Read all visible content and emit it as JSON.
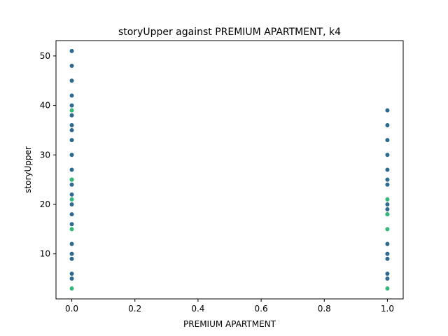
{
  "chart_data": {
    "type": "scatter",
    "title": "storyUpper against PREMIUM APARTMENT, k4",
    "xlabel": "PREMIUM APARTMENT",
    "ylabel": "storyUpper",
    "xlim": [
      -0.05,
      1.05
    ],
    "ylim": [
      0.9,
      53.1
    ],
    "xticks": [
      0.0,
      0.2,
      0.4,
      0.6,
      0.8,
      1.0
    ],
    "xtick_labels": [
      "0.0",
      "0.2",
      "0.4",
      "0.6",
      "0.8",
      "1.0"
    ],
    "yticks": [
      10,
      20,
      30,
      40,
      50
    ],
    "ytick_labels": [
      "10",
      "20",
      "30",
      "40",
      "50"
    ],
    "grid": false,
    "legend": "none",
    "colors": {
      "dark": "#2d6a8e",
      "green": "#35b779"
    },
    "series": [
      {
        "color": "#2d6a8e",
        "points": [
          [
            0,
            51
          ],
          [
            0,
            48
          ],
          [
            0,
            45
          ],
          [
            0,
            42
          ],
          [
            0,
            40
          ],
          [
            0,
            38
          ],
          [
            0,
            36
          ],
          [
            0,
            35
          ],
          [
            0,
            33
          ],
          [
            0,
            30
          ],
          [
            0,
            27
          ],
          [
            0,
            25
          ],
          [
            0,
            24
          ],
          [
            0,
            22
          ],
          [
            0,
            20
          ],
          [
            0,
            18
          ],
          [
            0,
            16
          ],
          [
            0,
            12
          ],
          [
            0,
            10
          ],
          [
            0,
            9
          ],
          [
            0,
            6
          ],
          [
            0,
            5
          ],
          [
            1,
            39
          ],
          [
            1,
            36
          ],
          [
            1,
            33
          ],
          [
            1,
            30
          ],
          [
            1,
            27
          ],
          [
            1,
            25
          ],
          [
            1,
            24
          ],
          [
            1,
            20
          ],
          [
            1,
            19
          ],
          [
            1,
            18
          ],
          [
            1,
            12
          ],
          [
            1,
            10
          ],
          [
            1,
            9
          ],
          [
            1,
            6
          ],
          [
            1,
            5
          ]
        ]
      },
      {
        "color": "#35b779",
        "points": [
          [
            0,
            39
          ],
          [
            0,
            25
          ],
          [
            0,
            21
          ],
          [
            0,
            15
          ],
          [
            0,
            3
          ],
          [
            1,
            21
          ],
          [
            1,
            18
          ],
          [
            1,
            15
          ],
          [
            1,
            3
          ]
        ]
      }
    ]
  }
}
